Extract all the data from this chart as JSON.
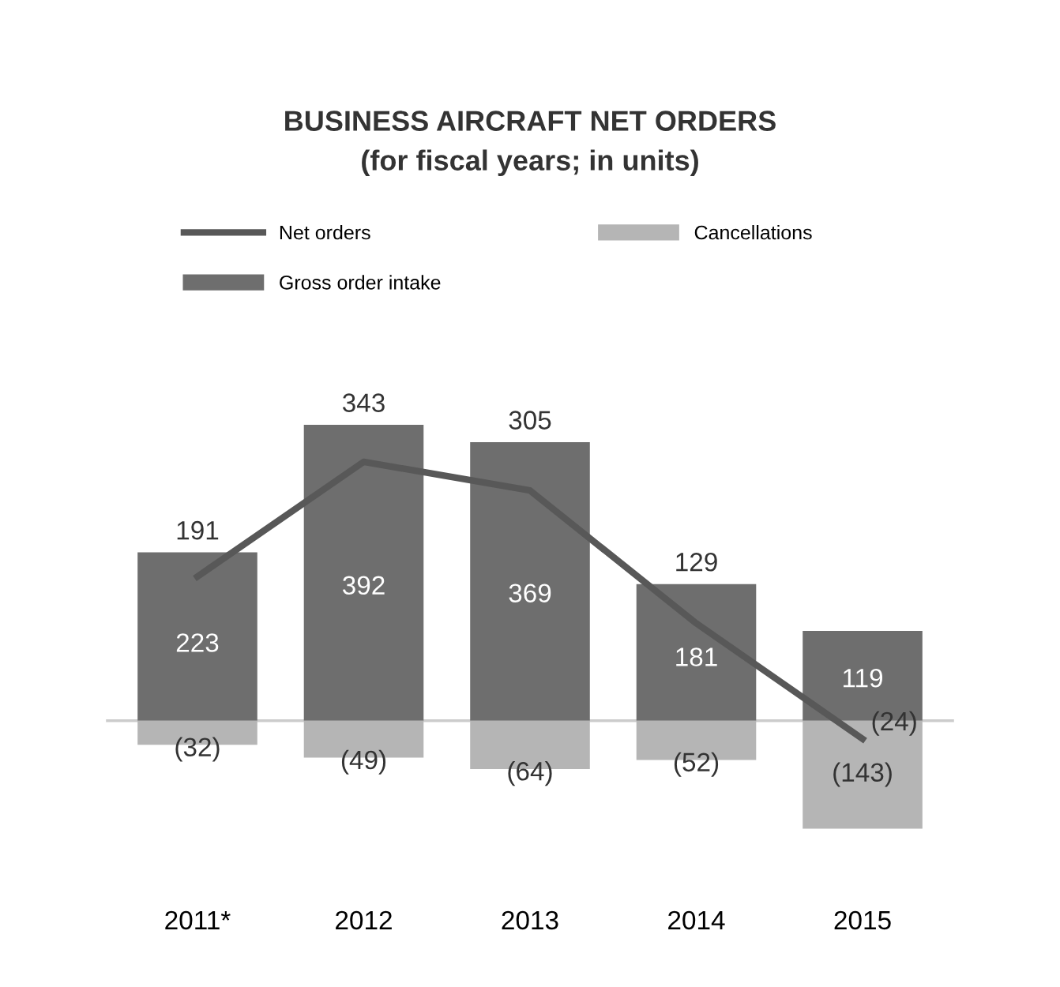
{
  "chart_data": {
    "type": "bar",
    "title": "BUSINESS AIRCRAFT NET ORDERS",
    "subtitle": "(for fiscal years; in units)",
    "categories": [
      "2011*",
      "2012",
      "2013",
      "2014",
      "2015"
    ],
    "series": [
      {
        "name": "Gross order intake",
        "color": "#6e6e6e",
        "values": [
          223,
          392,
          369,
          181,
          119
        ],
        "value_labels": [
          "223",
          "392",
          "369",
          "181",
          "119"
        ]
      },
      {
        "name": "Cancellations",
        "color": "#b5b5b5",
        "values": [
          -32,
          -49,
          -64,
          -52,
          -143
        ],
        "value_labels": [
          "(32)",
          "(49)",
          "(64)",
          "(52)",
          "(143)"
        ]
      },
      {
        "name": "Net orders",
        "type": "line",
        "color": "#585858",
        "values": [
          191,
          343,
          305,
          129,
          -24
        ],
        "value_labels": [
          "191",
          "343",
          "305",
          "129",
          "(24)"
        ]
      }
    ],
    "stacked": true,
    "tick_labels": "x",
    "grid": false,
    "legend": "top",
    "ref_lines": [
      {
        "axis": "y",
        "value": 0,
        "color": "#cccccc"
      }
    ]
  }
}
